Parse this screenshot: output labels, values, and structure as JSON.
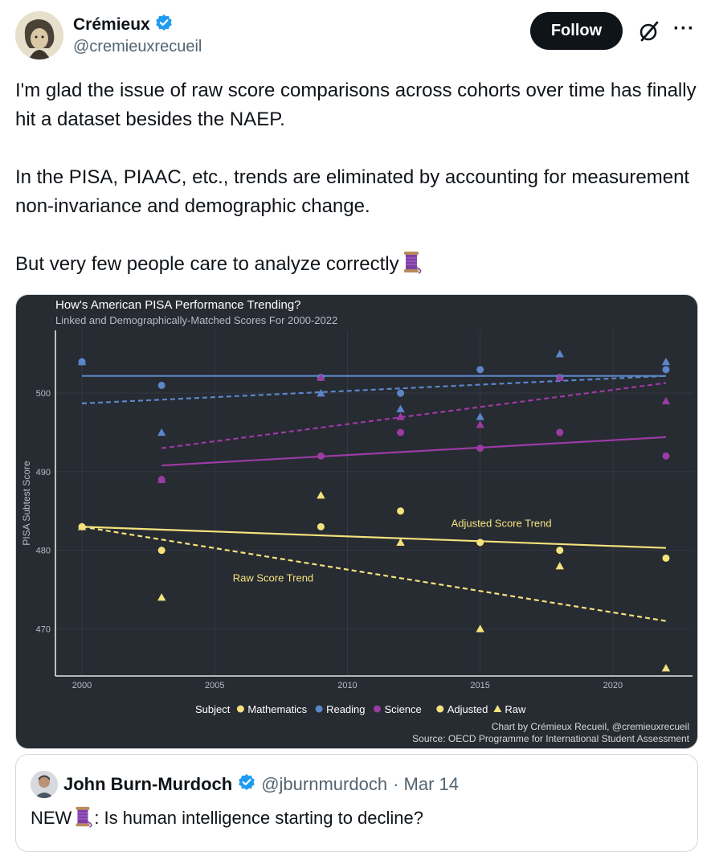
{
  "author": {
    "name": "Crémieux",
    "handle": "@cremieuxrecueil",
    "verified": true
  },
  "actions": {
    "follow_label": "Follow"
  },
  "tweet": {
    "p1": "I'm glad the issue of raw score comparisons across cohorts over time has finally hit a dataset besides the NAEP.",
    "p2": "In the PISA, PIAAC, etc., trends are eliminated by accounting for measurement non-invariance and demographic change.",
    "p3": "But very few people care to analyze correctly",
    "p3_emoji": "thread-spool-icon"
  },
  "chart_data": {
    "type": "scatter",
    "title": "How's American PISA Performance Trending?",
    "subtitle": "Linked and Demographically-Matched Scores For 2000-2022",
    "ylabel": "PISA Subtest Score",
    "xlabel": "",
    "xlim": [
      1999,
      2023
    ],
    "ylim": [
      464,
      508
    ],
    "x_ticks": [
      2000,
      2005,
      2010,
      2015,
      2020
    ],
    "y_ticks": [
      470,
      480,
      490,
      500
    ],
    "legend": {
      "subject_title": "Subject",
      "subjects": [
        "Mathematics",
        "Reading",
        "Science"
      ],
      "markers": [
        "Adjusted",
        "Raw"
      ]
    },
    "colors": {
      "Mathematics": "#f4e37c",
      "Reading": "#5b86c8",
      "Science": "#9b3ba3"
    },
    "series": [
      {
        "subject": "Mathematics",
        "kind": "Adjusted",
        "x": [
          2000,
          2003,
          2009,
          2012,
          2015,
          2018,
          2022
        ],
        "y": [
          483,
          480,
          483,
          485,
          481,
          480,
          479
        ]
      },
      {
        "subject": "Mathematics",
        "kind": "Raw",
        "x": [
          2000,
          2003,
          2009,
          2012,
          2015,
          2018,
          2022
        ],
        "y": [
          483,
          474,
          487,
          481,
          470,
          478,
          465
        ]
      },
      {
        "subject": "Reading",
        "kind": "Adjusted",
        "x": [
          2000,
          2003,
          2009,
          2012,
          2015,
          2018,
          2022
        ],
        "y": [
          504,
          501,
          502,
          500,
          503,
          502,
          503
        ]
      },
      {
        "subject": "Reading",
        "kind": "Raw",
        "x": [
          2000,
          2003,
          2009,
          2012,
          2015,
          2018,
          2022
        ],
        "y": [
          504,
          495,
          500,
          498,
          497,
          505,
          504
        ]
      },
      {
        "subject": "Science",
        "kind": "Adjusted",
        "x": [
          2003,
          2009,
          2012,
          2015,
          2018,
          2022
        ],
        "y": [
          489,
          492,
          495,
          493,
          495,
          492
        ]
      },
      {
        "subject": "Science",
        "kind": "Raw",
        "x": [
          2003,
          2009,
          2012,
          2015,
          2018,
          2022
        ],
        "y": [
          489,
          502,
          497,
          496,
          502,
          499
        ]
      }
    ],
    "trends": [
      {
        "subject": "Mathematics",
        "kind": "Adjusted",
        "x": [
          2000,
          2022
        ],
        "y": [
          483,
          480.3
        ]
      },
      {
        "subject": "Mathematics",
        "kind": "Raw",
        "x": [
          2000,
          2022
        ],
        "y": [
          483,
          471
        ]
      },
      {
        "subject": "Reading",
        "kind": "Adjusted",
        "x": [
          2000,
          2022
        ],
        "y": [
          502.2,
          502.2
        ]
      },
      {
        "subject": "Reading",
        "kind": "Raw",
        "x": [
          2000,
          2022
        ],
        "y": [
          498.7,
          502.2
        ]
      },
      {
        "subject": "Science",
        "kind": "Adjusted",
        "x": [
          2003,
          2022
        ],
        "y": [
          490.8,
          494.4
        ]
      },
      {
        "subject": "Science",
        "kind": "Raw",
        "x": [
          2003,
          2022
        ],
        "y": [
          493,
          501.3
        ]
      }
    ],
    "annotations": [
      {
        "text": "Adjusted Score Trend",
        "x": 2015.8,
        "y": 483
      },
      {
        "text": "Raw Score Trend",
        "x": 2007.2,
        "y": 476
      }
    ],
    "credit": "Chart by Crémieux Recueil, @cremieuxrecueil",
    "source": "Source: OECD Programme for International Student Assessment"
  },
  "quoted": {
    "name": "John Burn-Murdoch",
    "handle": "@jburnmurdoch",
    "date": "· Mar 14",
    "text_prefix": "NEW",
    "text_suffix": ": Is human intelligence starting to decline?"
  }
}
